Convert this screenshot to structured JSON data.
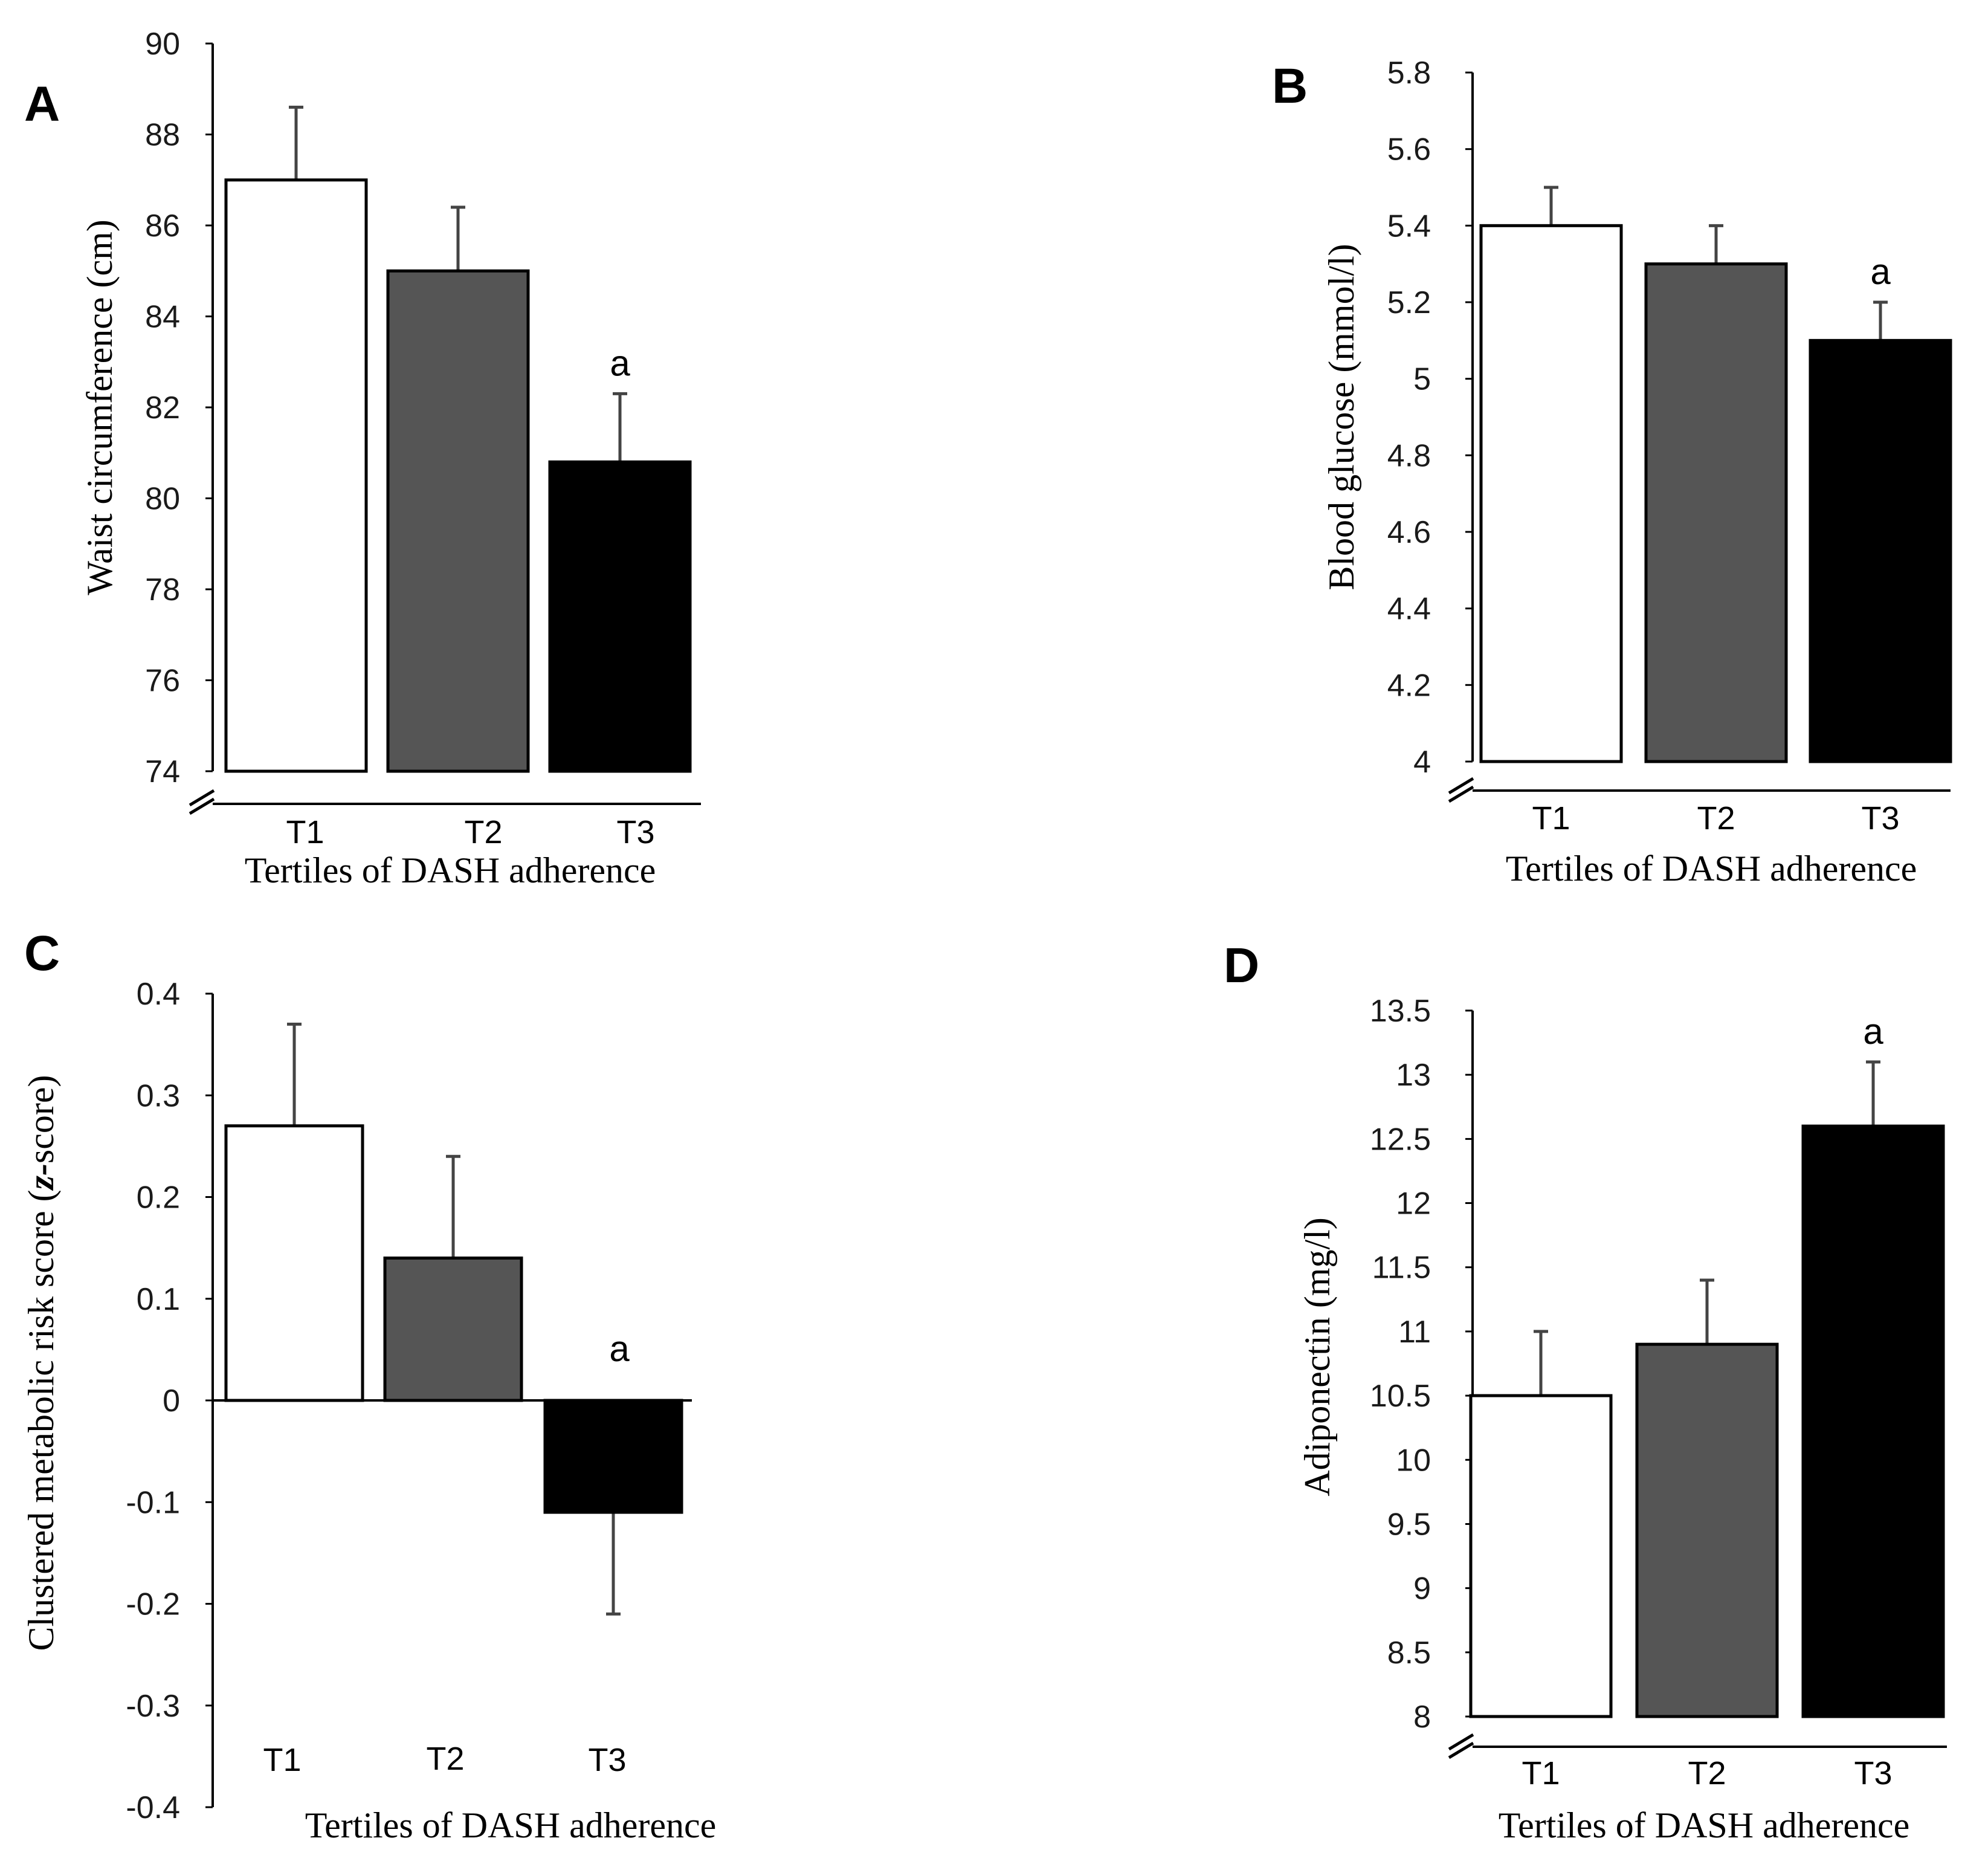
{
  "colors": {
    "T1": "#ffffff",
    "T2": "#555555",
    "T3": "#000000"
  },
  "chart_data": [
    {
      "type": "bar",
      "panel": "A",
      "categories": [
        "T1",
        "T2",
        "T3"
      ],
      "values": [
        87.0,
        85.0,
        80.8
      ],
      "error_upper": [
        88.6,
        86.4,
        82.3
      ],
      "annotations": [
        "",
        "",
        "a"
      ],
      "ylabel": "Waist circumference (cm)",
      "xlabel": "Tertiles of DASH adherence",
      "ylim": [
        74,
        90
      ],
      "yticks": [
        74,
        76,
        78,
        80,
        82,
        84,
        86,
        88,
        90
      ],
      "ytick_labels": [
        "74",
        "76",
        "78",
        "80",
        "82",
        "84",
        "86",
        "88",
        "90"
      ],
      "axis_break": true
    },
    {
      "type": "bar",
      "panel": "B",
      "categories": [
        "T1",
        "T2",
        "T3"
      ],
      "values": [
        5.4,
        5.3,
        5.1
      ],
      "error_upper": [
        5.5,
        5.4,
        5.2
      ],
      "annotations": [
        "",
        "",
        "a"
      ],
      "ylabel": "Blood glucose (mmol/l)",
      "xlabel": "Tertiles of DASH adherence",
      "ylim": [
        4,
        5.8
      ],
      "yticks": [
        4,
        4.2,
        4.4,
        4.6,
        4.8,
        5,
        5.2,
        5.4,
        5.6,
        5.8
      ],
      "ytick_labels": [
        "4",
        "4.2",
        "4.4",
        "4.6",
        "4.8",
        "5",
        "5.2",
        "5.4",
        "5.6",
        "5.8"
      ],
      "axis_break": true
    },
    {
      "type": "bar",
      "panel": "C",
      "categories": [
        "T1",
        "T2",
        "T3"
      ],
      "values": [
        0.27,
        0.14,
        -0.11
      ],
      "error_upper": [
        0.37,
        0.24,
        -0.21
      ],
      "annotations": [
        "",
        "",
        "a"
      ],
      "ylabel_main": "Clustered metabolic risk score (",
      "ylabel_italic": "z-",
      "ylabel_end": "score)",
      "xlabel": "Tertiles of DASH adherence",
      "ylim": [
        -0.4,
        0.4
      ],
      "yticks": [
        -0.4,
        -0.3,
        -0.2,
        -0.1,
        0,
        0.1,
        0.2,
        0.3,
        0.4
      ],
      "ytick_labels": [
        "-0.4",
        "-0.3",
        "-0.2",
        "-0.1",
        "0",
        "0.1",
        "0.2",
        "0.3",
        "0.4"
      ],
      "axis_break": false
    },
    {
      "type": "bar",
      "panel": "D",
      "categories": [
        "T1",
        "T2",
        "T3"
      ],
      "values": [
        10.5,
        10.9,
        12.6
      ],
      "error_upper": [
        11.0,
        11.4,
        13.1
      ],
      "annotations": [
        "",
        "",
        "a"
      ],
      "ylabel": "Adiponectin (mg/l)",
      "xlabel": "Tertiles of DASH adherence",
      "ylim": [
        8,
        13.5
      ],
      "yticks": [
        8,
        8.5,
        9,
        9.5,
        10,
        10.5,
        11,
        11.5,
        12,
        12.5,
        13,
        13.5
      ],
      "ytick_labels": [
        "8",
        "8.5",
        "9",
        "9.5",
        "10",
        "10.5",
        "11",
        "11.5",
        "12",
        "12.5",
        "13",
        "13.5"
      ],
      "axis_break": true
    }
  ]
}
